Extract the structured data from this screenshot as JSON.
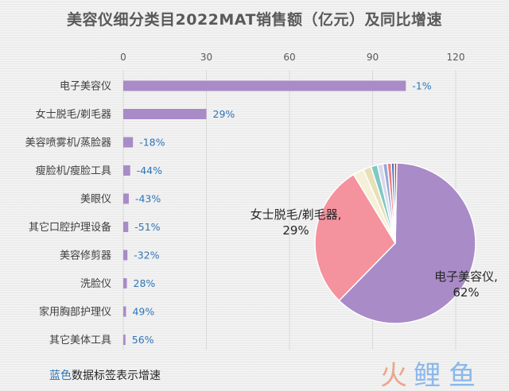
{
  "title": "美容仪细分类目2022MAT销售额（亿元）及同比增速",
  "note": {
    "blue_part": "蓝色",
    "rest": "数据标签表示增速"
  },
  "chart_data": [
    {
      "type": "bar",
      "orientation": "horizontal",
      "xlim": [
        0,
        120
      ],
      "xticks": [
        0,
        30,
        60,
        90,
        120
      ],
      "categories": [
        "电子美容仪",
        "女士脱毛/剃毛器",
        "美容喷雾机/蒸脸器",
        "瘦脸机/瘦脸工具",
        "美眼仪",
        "其它口腔护理设备",
        "美容修剪器",
        "洗脸仪",
        "家用胸部护理仪",
        "其它美体工具"
      ],
      "values": [
        102,
        30,
        3.5,
        2.5,
        2.0,
        1.8,
        1.5,
        1.3,
        1.0,
        0.8
      ],
      "growth_labels": [
        "-1%",
        "29%",
        "-18%",
        "-44%",
        "-43%",
        "-51%",
        "-32%",
        "28%",
        "49%",
        "56%"
      ],
      "bar_color": "#a98bc8",
      "grid": true
    },
    {
      "type": "pie",
      "slices": [
        {
          "label": "电子美容仪",
          "value": 62,
          "color": "#a98bc8",
          "text": "电子美容仪,\n62%"
        },
        {
          "label": "女士脱毛/剃毛器",
          "value": 29,
          "color": "#f4929e",
          "text": "女士脱毛/剃毛器,\n29%"
        },
        {
          "label": "美容喷雾机/蒸脸器",
          "value": 2.2,
          "color": "#f5f0d8",
          "text": ""
        },
        {
          "label": "瘦脸机/瘦脸工具",
          "value": 1.6,
          "color": "#e8e0b8",
          "text": ""
        },
        {
          "label": "美眼仪",
          "value": 1.3,
          "color": "#7fc8c8",
          "text": ""
        },
        {
          "label": "其它口腔护理设备",
          "value": 1.1,
          "color": "#d8d8e8",
          "text": ""
        },
        {
          "label": "美容修剪器",
          "value": 0.9,
          "color": "#9aa8d8",
          "text": ""
        },
        {
          "label": "洗脸仪",
          "value": 0.8,
          "color": "#e88080",
          "text": ""
        },
        {
          "label": "家用胸部护理仪",
          "value": 0.6,
          "color": "#4a6ac0",
          "text": ""
        },
        {
          "label": "其它美体工具",
          "value": 0.5,
          "color": "#c04040",
          "text": ""
        }
      ]
    }
  ]
}
